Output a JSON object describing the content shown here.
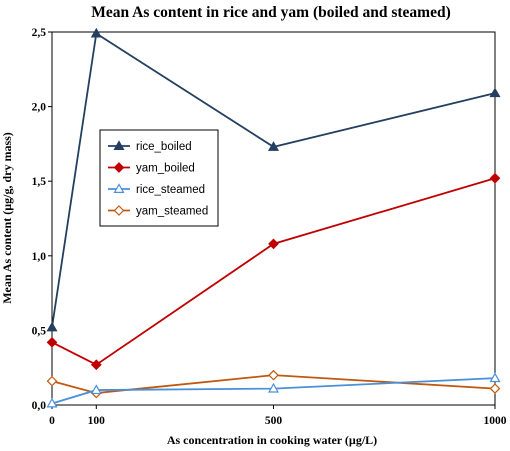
{
  "chart_data": {
    "type": "line",
    "title": "Mean As content in rice and yam (boiled and steamed)",
    "xlabel": "As concentration in cooking water (µg/L)",
    "ylabel": "Mean As content (µg/g, dry mass)",
    "xlim": [
      0,
      1000
    ],
    "ylim": [
      0,
      2.5
    ],
    "x_ticks": [
      0,
      100,
      500,
      1000
    ],
    "x_tick_labels": [
      "0",
      "100",
      "500",
      "1000"
    ],
    "y_ticks": [
      0,
      0.5,
      1.0,
      1.5,
      2.0,
      2.5
    ],
    "y_tick_labels": [
      "0,0",
      "0,5",
      "1,0",
      "1,5",
      "2,0",
      "2,5"
    ],
    "legend_position": "left-middle",
    "grid": false,
    "x": [
      0,
      100,
      500,
      1000
    ],
    "series": [
      {
        "name": "rice_boiled",
        "values": [
          0.52,
          2.49,
          1.73,
          2.09
        ],
        "color": "#243F60",
        "marker": "triangle-filled"
      },
      {
        "name": "yam_boiled",
        "values": [
          0.42,
          0.27,
          1.08,
          1.52
        ],
        "color": "#C00000",
        "marker": "diamond-filled"
      },
      {
        "name": "rice_steamed",
        "values": [
          0.01,
          0.1,
          0.11,
          0.18
        ],
        "color": "#4A90D9",
        "marker": "triangle-open"
      },
      {
        "name": "yam_steamed",
        "values": [
          0.16,
          0.08,
          0.2,
          0.11
        ],
        "color": "#C0590F",
        "marker": "diamond-open"
      }
    ]
  }
}
